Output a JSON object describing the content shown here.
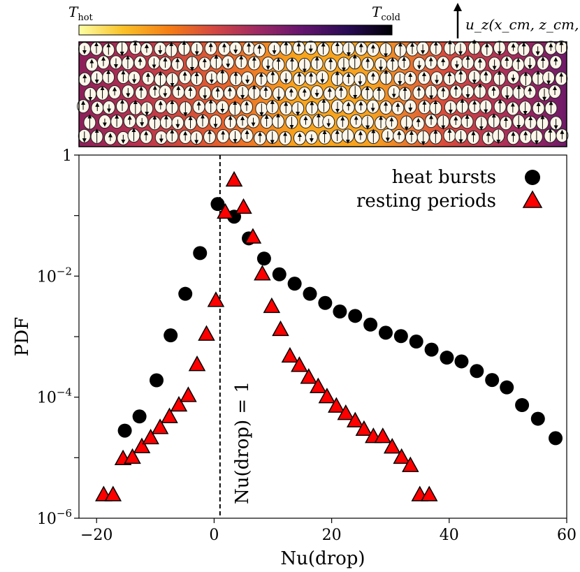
{
  "colorbar": {
    "left_label": "T",
    "left_sub": "hot",
    "right_label": "T",
    "right_sub": "cold",
    "colors": [
      "#fcffa4",
      "#fac228",
      "#f57d15",
      "#d44842",
      "#9f2a63",
      "#65156e",
      "#280b53",
      "#000004"
    ]
  },
  "velocity_label": "u_z(x_cm, z_cm, t)",
  "chart_data": {
    "type": "scatter",
    "title": "",
    "xlabel": "Nu(drop)",
    "ylabel": "PDF",
    "yscale": "log",
    "xlim": [
      -23,
      60
    ],
    "ylim": [
      1e-06,
      1
    ],
    "xticks": [
      -20,
      0,
      20,
      40,
      60
    ],
    "yticks": [
      {
        "value": 1e-06,
        "base": "10",
        "exp": "−6"
      },
      {
        "value": 0.0001,
        "base": "10",
        "exp": "−4"
      },
      {
        "value": 0.01,
        "base": "10",
        "exp": "−2"
      },
      {
        "value": 1,
        "base": "1",
        "exp": ""
      }
    ],
    "vline": {
      "x": 1,
      "label": "Nu(drop) = 1"
    },
    "series": [
      {
        "name": "heat bursts",
        "marker": "circle",
        "color": "#000000",
        "points": [
          [
            -15.2,
            2.8e-05
          ],
          [
            -12.7,
            4.8e-05
          ],
          [
            -9.8,
            0.00019
          ],
          [
            -7.4,
            0.00105
          ],
          [
            -4.9,
            0.0051
          ],
          [
            -2.4,
            0.024
          ],
          [
            0.6,
            0.155
          ],
          [
            3.4,
            0.096
          ],
          [
            5.9,
            0.042
          ],
          [
            8.5,
            0.0195
          ],
          [
            11.1,
            0.0107
          ],
          [
            13.7,
            0.0075
          ],
          [
            16.3,
            0.0051
          ],
          [
            18.9,
            0.0036
          ],
          [
            21.4,
            0.0026
          ],
          [
            24.0,
            0.0022
          ],
          [
            26.6,
            0.00158
          ],
          [
            29.2,
            0.00116
          ],
          [
            31.8,
            0.00102
          ],
          [
            34.4,
            0.00083
          ],
          [
            37.0,
            0.00061
          ],
          [
            39.6,
            0.00045
          ],
          [
            42.1,
            0.00039
          ],
          [
            44.7,
            0.00027
          ],
          [
            47.3,
            0.000192
          ],
          [
            49.8,
            0.000145
          ],
          [
            52.4,
            7.4e-05
          ],
          [
            55.1,
            4.4e-05
          ],
          [
            58.1,
            2.1e-05
          ]
        ]
      },
      {
        "name": "resting periods",
        "marker": "triangle",
        "color": "#ff0000",
        "points": [
          [
            -18.8,
            2.4e-06
          ],
          [
            -17.2,
            2.4e-06
          ],
          [
            -15.5,
            9.5e-06
          ],
          [
            -13.9,
            1e-05
          ],
          [
            -12.3,
            1.5e-05
          ],
          [
            -10.8,
            2.1e-05
          ],
          [
            -9.2,
            3.1e-05
          ],
          [
            -7.6,
            4.7e-05
          ],
          [
            -6.0,
            7.3e-05
          ],
          [
            -4.4,
            0.000105
          ],
          [
            -2.9,
            0.00034
          ],
          [
            -1.3,
            0.00108
          ],
          [
            0.3,
            0.0039
          ],
          [
            1.9,
            0.112
          ],
          [
            3.4,
            0.38
          ],
          [
            5.0,
            0.135
          ],
          [
            6.6,
            0.0435
          ],
          [
            8.2,
            0.0107
          ],
          [
            9.8,
            0.0031
          ],
          [
            11.3,
            0.00129
          ],
          [
            12.9,
            0.00047
          ],
          [
            14.5,
            0.00033
          ],
          [
            16.1,
            0.00021
          ],
          [
            17.7,
            0.000147
          ],
          [
            19.2,
            0.0001
          ],
          [
            20.8,
            7e-05
          ],
          [
            22.4,
            5.3e-05
          ],
          [
            24.0,
            4e-05
          ],
          [
            25.5,
            2.9e-05
          ],
          [
            27.1,
            2.2e-05
          ],
          [
            28.7,
            2.2e-05
          ],
          [
            30.3,
            1.48e-05
          ],
          [
            31.9,
            1e-05
          ],
          [
            33.4,
            7.3e-06
          ],
          [
            35.0,
            2.4e-06
          ],
          [
            36.6,
            2.4e-06
          ]
        ]
      }
    ],
    "legend": {
      "position": "top-right",
      "entries": [
        "heat bursts",
        "resting periods"
      ]
    }
  }
}
